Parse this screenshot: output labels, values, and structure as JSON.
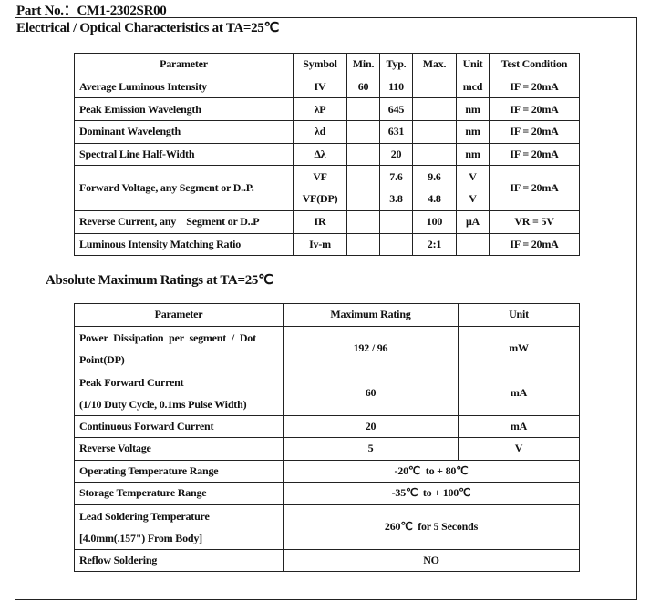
{
  "part_no": "Part No.：CM1-2302SR00",
  "electrical": {
    "heading": "Electrical / Optical Characteristics at TA=25℃",
    "headers": [
      "Parameter",
      "Symbol",
      "Min.",
      "Typ.",
      "Max.",
      "Unit",
      "Test Condition"
    ],
    "rows": [
      {
        "parameter": "Average Luminous Intensity",
        "symbol": "IV",
        "min": "60",
        "typ": "110",
        "max": "",
        "unit": "mcd",
        "cond": "IF = 20mA"
      },
      {
        "parameter": "Peak Emission Wavelength",
        "symbol": "λP",
        "min": "",
        "typ": "645",
        "max": "",
        "unit": "nm",
        "cond": "IF = 20mA"
      },
      {
        "parameter": "Dominant Wavelength",
        "symbol": "λd",
        "min": "",
        "typ": "631",
        "max": "",
        "unit": "nm",
        "cond": "IF = 20mA"
      },
      {
        "parameter": "Spectral Line Half-Width",
        "symbol": "Δλ",
        "min": "",
        "typ": "20",
        "max": "",
        "unit": "nm",
        "cond": "IF = 20mA"
      },
      {
        "parameter": "Forward Voltage, any Segment or D..P.",
        "symbol": "VF",
        "min": "",
        "typ": "7.6",
        "max": "9.6",
        "unit": "V",
        "cond": "IF = 20mA"
      },
      {
        "symbol": "VF(DP)",
        "min": "",
        "typ": "3.8",
        "max": "4.8",
        "unit": "V"
      },
      {
        "parameter": "Reverse Current, any    Segment or D..P",
        "symbol": "IR",
        "min": "",
        "typ": "",
        "max": "100",
        "unit": "μA",
        "cond": "VR = 5V"
      },
      {
        "parameter": "Luminous Intensity Matching Ratio",
        "symbol": "Iv-m",
        "min": "",
        "typ": "",
        "max": "2:1",
        "unit": "",
        "cond": "IF = 20mA"
      }
    ]
  },
  "absolute": {
    "heading": "Absolute Maximum Ratings at TA=25℃",
    "headers": [
      "Parameter",
      "Maximum Rating",
      "Unit"
    ],
    "rows": [
      {
        "parameter": "Power Dissipation per segment / Dot",
        "parameter2": "Point(DP)",
        "rating": "192 / 96",
        "unit": "mW"
      },
      {
        "parameter": "Peak Forward Current",
        "parameter2": "(1/10 Duty Cycle, 0.1ms Pulse Width)",
        "rating": "60",
        "unit": "mA"
      },
      {
        "parameter": "Continuous Forward Current",
        "rating": "20",
        "unit": "mA"
      },
      {
        "parameter": "Reverse Voltage",
        "rating": "5",
        "unit": "V"
      },
      {
        "parameter": "Operating Temperature Range",
        "rating": "-20℃  to + 80℃"
      },
      {
        "parameter": "Storage Temperature Range",
        "rating": "-35℃  to + 100℃"
      },
      {
        "parameter": "Lead Soldering Temperature",
        "parameter2": "[4.0mm(.157\") From Body]",
        "rating": "260℃  for 5 Seconds"
      },
      {
        "parameter": "Reflow Soldering",
        "rating": "NO"
      }
    ]
  }
}
